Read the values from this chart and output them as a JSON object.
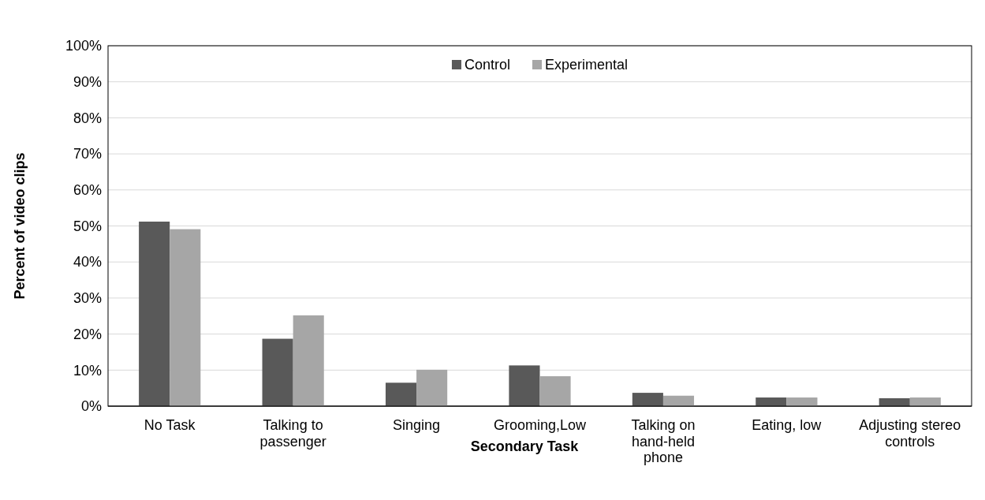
{
  "chart_data": {
    "type": "bar",
    "xlabel": "Secondary Task",
    "ylabel": "Percent of video clips",
    "categories": [
      "No Task",
      "Talking to passenger",
      "Singing",
      "Grooming,Low",
      "Talking on hand-held phone",
      "Eating, low",
      "Adjusting stereo controls"
    ],
    "series": [
      {
        "name": "Control",
        "color": "#595959",
        "values": [
          51.2,
          18.7,
          6.5,
          11.3,
          3.7,
          2.4,
          2.2
        ]
      },
      {
        "name": "Experimental",
        "color": "#a6a6a6",
        "values": [
          49.1,
          25.2,
          10.1,
          8.3,
          2.9,
          2.4,
          2.4
        ]
      }
    ],
    "ylim": [
      0,
      100
    ],
    "yticks": [
      {
        "value": 0,
        "label": "0%"
      },
      {
        "value": 10,
        "label": "10%"
      },
      {
        "value": 20,
        "label": "20%"
      },
      {
        "value": 30,
        "label": "30%"
      },
      {
        "value": 40,
        "label": "40%"
      },
      {
        "value": 50,
        "label": "50%"
      },
      {
        "value": 60,
        "label": "60%"
      },
      {
        "value": 70,
        "label": "70%"
      },
      {
        "value": 80,
        "label": "80%"
      },
      {
        "value": 90,
        "label": "90%"
      },
      {
        "value": 100,
        "label": "100%"
      }
    ],
    "grid": "y",
    "legend": "top"
  }
}
